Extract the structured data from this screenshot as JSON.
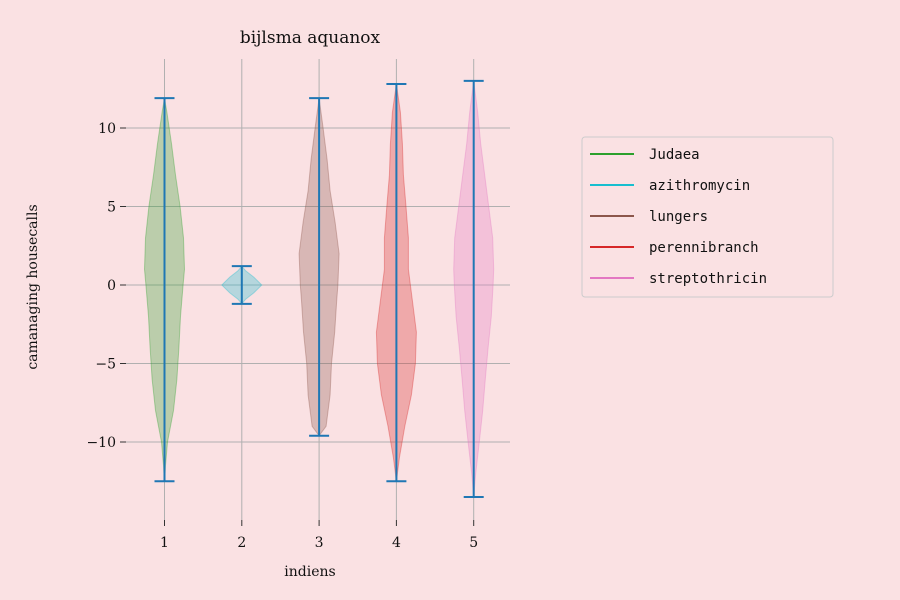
{
  "chart_data": {
    "type": "violin",
    "title": "bijlsma aquanox",
    "xlabel": "indiens",
    "ylabel": "camanaging housecalls",
    "x_ticks": [
      "1",
      "2",
      "3",
      "4",
      "5"
    ],
    "y_ticks": [
      -10,
      -5,
      0,
      5,
      10
    ],
    "y_tick_labels": [
      "−10",
      "−5",
      "0",
      "5",
      "10"
    ],
    "ylim": [
      -14.5,
      14.5
    ],
    "grid": true,
    "legend_position": "right",
    "series": [
      {
        "name": "Judaea",
        "position": 1,
        "color": "#2ca02c",
        "min": -12.5,
        "max": 11.9,
        "profile": [
          [
            -12.5,
            0.0
          ],
          [
            -11.5,
            0.05
          ],
          [
            -10,
            0.15
          ],
          [
            -8,
            0.45
          ],
          [
            -6,
            0.62
          ],
          [
            -4,
            0.72
          ],
          [
            -2,
            0.8
          ],
          [
            0,
            0.93
          ],
          [
            1,
            1.0
          ],
          [
            3,
            0.95
          ],
          [
            5,
            0.78
          ],
          [
            7,
            0.55
          ],
          [
            9,
            0.35
          ],
          [
            11,
            0.12
          ],
          [
            11.9,
            0.0
          ]
        ]
      },
      {
        "name": "azithromycin",
        "position": 2,
        "color": "#17becf",
        "min": -1.2,
        "max": 1.2,
        "profile": [
          [
            -1.2,
            0.0
          ],
          [
            -0.9,
            0.2
          ],
          [
            -0.5,
            0.6
          ],
          [
            0,
            1.0
          ],
          [
            0.5,
            0.6
          ],
          [
            0.9,
            0.2
          ],
          [
            1.2,
            0.0
          ]
        ]
      },
      {
        "name": "lungers",
        "position": 3,
        "color": "#8c564b",
        "min": -9.6,
        "max": 11.9,
        "profile": [
          [
            -9.6,
            0.0
          ],
          [
            -9,
            0.35
          ],
          [
            -7,
            0.55
          ],
          [
            -5,
            0.62
          ],
          [
            -3,
            0.78
          ],
          [
            -1,
            0.88
          ],
          [
            0,
            0.94
          ],
          [
            2,
            1.0
          ],
          [
            4,
            0.8
          ],
          [
            6,
            0.55
          ],
          [
            8,
            0.4
          ],
          [
            10,
            0.2
          ],
          [
            11.9,
            0.0
          ]
        ]
      },
      {
        "name": "perennibranch",
        "position": 4,
        "color": "#d62728",
        "min": -12.5,
        "max": 12.8,
        "profile": [
          [
            -12.5,
            0.0
          ],
          [
            -11,
            0.15
          ],
          [
            -9,
            0.42
          ],
          [
            -7,
            0.75
          ],
          [
            -5,
            0.95
          ],
          [
            -3,
            1.0
          ],
          [
            -1,
            0.8
          ],
          [
            1,
            0.6
          ],
          [
            3,
            0.6
          ],
          [
            5,
            0.48
          ],
          [
            7,
            0.35
          ],
          [
            9,
            0.3
          ],
          [
            11,
            0.2
          ],
          [
            12.8,
            0.0
          ]
        ]
      },
      {
        "name": "streptothricin",
        "position": 5,
        "color": "#e377c2",
        "min": -13.5,
        "max": 13.0,
        "profile": [
          [
            -13.5,
            0.0
          ],
          [
            -12,
            0.1
          ],
          [
            -10,
            0.28
          ],
          [
            -8,
            0.45
          ],
          [
            -6,
            0.58
          ],
          [
            -4,
            0.72
          ],
          [
            -2,
            0.88
          ],
          [
            0,
            0.97
          ],
          [
            1,
            1.0
          ],
          [
            3,
            0.95
          ],
          [
            5,
            0.75
          ],
          [
            7,
            0.55
          ],
          [
            9,
            0.35
          ],
          [
            11,
            0.2
          ],
          [
            13.0,
            0.0
          ]
        ]
      }
    ]
  }
}
